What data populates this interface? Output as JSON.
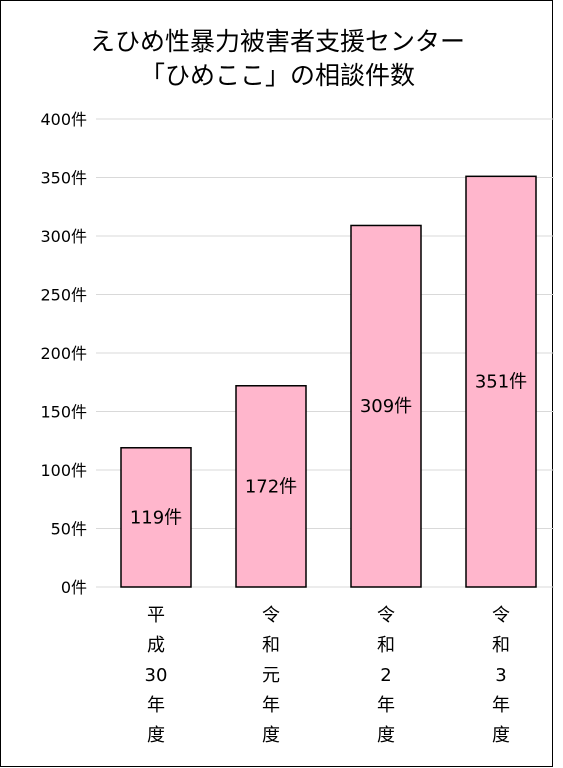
{
  "chart_data": {
    "type": "bar",
    "title_lines": [
      "えひめ性暴力被害者支援センター",
      "「ひめここ」の相談件数"
    ],
    "categories": [
      [
        "平",
        "成",
        "30",
        "年",
        "度"
      ],
      [
        "令",
        "和",
        "元",
        "年",
        "度"
      ],
      [
        "令",
        "和",
        "2",
        "年",
        "度"
      ],
      [
        "令",
        "和",
        "3",
        "年",
        "度"
      ]
    ],
    "values": [
      119,
      172,
      309,
      351
    ],
    "data_labels": [
      "119件",
      "172件",
      "309件",
      "351件"
    ],
    "y_ticks": [
      0,
      50,
      100,
      150,
      200,
      250,
      300,
      350,
      400
    ],
    "y_tick_labels": [
      "0件",
      "50件",
      "100件",
      "150件",
      "200件",
      "250件",
      "300件",
      "350件",
      "400件"
    ],
    "ylim": [
      0,
      400
    ],
    "grid": true,
    "legend": "none",
    "colors": {
      "bar_fill": "#ffb6cc",
      "bar_stroke": "#000000",
      "grid": "#d9d9d9",
      "text": "#000000"
    }
  }
}
